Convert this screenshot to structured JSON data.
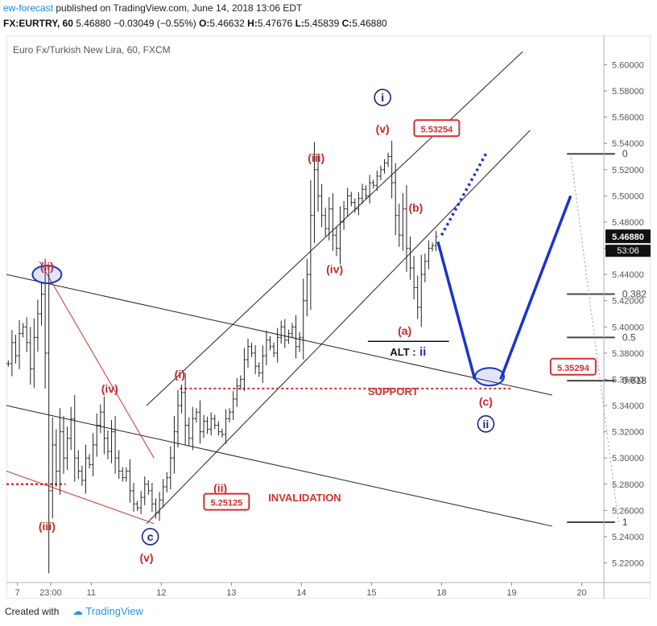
{
  "header": {
    "author": "ew-forecast",
    "publish_text": "published on TradingView.com, June 14, 2018 13:06 EDT",
    "symbol": "FX:EURTRY, 60",
    "last": "5.46880",
    "change": "−0.03049 (−0.55%)",
    "o_label": "O:",
    "o_val": "5.46632",
    "h_label": "H:",
    "h_val": "5.47676",
    "l_label": "L:",
    "l_val": "5.45839",
    "c_label": "C:",
    "c_val": "5.46880"
  },
  "footer": {
    "created_with": "Created with",
    "brand": "TradingView"
  },
  "colors": {
    "red": "#c62828",
    "blue": "#1a33cc",
    "text": "#444444",
    "grid": "#e0e0e0"
  },
  "chart_data": {
    "type": "candlestick",
    "title": "Euro Fx/Turkish New Lira, 60, FXCM",
    "ylim": [
      5.205,
      5.615
    ],
    "y_ticks": [
      "5.22000",
      "5.24000",
      "5.26000",
      "5.28000",
      "5.30000",
      "5.32000",
      "5.34000",
      "5.36000",
      "5.38000",
      "5.40000",
      "5.42000",
      "5.44000",
      "5.46000",
      "5.48000",
      "5.50000",
      "5.52000",
      "5.54000",
      "5.56000",
      "5.58000",
      "5.60000"
    ],
    "x_ticks": [
      {
        "label": "7",
        "t": 3
      },
      {
        "label": "23:00",
        "t": 12
      },
      {
        "label": "11",
        "t": 23
      },
      {
        "label": "12",
        "t": 42
      },
      {
        "label": "13",
        "t": 61
      },
      {
        "label": "14",
        "t": 80
      },
      {
        "label": "15",
        "t": 99
      },
      {
        "label": "18",
        "t": 118
      },
      {
        "label": "19",
        "t": 137
      },
      {
        "label": "20",
        "t": 156
      }
    ],
    "xlim": [
      0,
      162
    ],
    "current_price": "5.46880",
    "countdown": "53:06",
    "closes": [
      5.372,
      5.388,
      5.378,
      5.395,
      5.4,
      5.388,
      5.368,
      5.392,
      5.41,
      5.425,
      5.38,
      5.275,
      5.31,
      5.29,
      5.32,
      5.3,
      5.315,
      5.33,
      5.3,
      5.29,
      5.283,
      5.3,
      5.295,
      5.31,
      5.325,
      5.335,
      5.315,
      5.305,
      5.32,
      5.3,
      5.29,
      5.285,
      5.29,
      5.275,
      5.265,
      5.262,
      5.27,
      5.28,
      5.275,
      5.265,
      5.258,
      5.268,
      5.278,
      5.285,
      5.3,
      5.32,
      5.34,
      5.35,
      5.325,
      5.315,
      5.33,
      5.335,
      5.32,
      5.328,
      5.322,
      5.33,
      5.325,
      5.32,
      5.318,
      5.33,
      5.335,
      5.345,
      5.355,
      5.36,
      5.375,
      5.385,
      5.38,
      5.37,
      5.365,
      5.378,
      5.39,
      5.385,
      5.38,
      5.392,
      5.4,
      5.39,
      5.395,
      5.4,
      5.385,
      5.392,
      5.42,
      5.44,
      5.485,
      5.52,
      5.5,
      5.485,
      5.475,
      5.49,
      5.47,
      5.46,
      5.48,
      5.49,
      5.5,
      5.495,
      5.49,
      5.498,
      5.505,
      5.5,
      5.51,
      5.508,
      5.515,
      5.52,
      5.525,
      5.53,
      5.51,
      5.485,
      5.47,
      5.49,
      5.46,
      5.445,
      5.43,
      5.415,
      5.44,
      5.45,
      5.46,
      5.462,
      5.469
    ],
    "wave_labels": [
      {
        "text": "(ii)",
        "color": "red",
        "t": 11,
        "y": 5.443
      },
      {
        "text": "(iii)",
        "color": "red",
        "t": 11,
        "y": 5.245
      },
      {
        "text": "(iv)",
        "color": "red",
        "t": 28,
        "y": 5.35
      },
      {
        "text": "(v)",
        "color": "red",
        "t": 38,
        "y": 5.221
      },
      {
        "text": "(i)",
        "color": "red",
        "t": 47,
        "y": 5.361
      },
      {
        "text": "(ii)",
        "color": "red",
        "t": 58,
        "y": 5.274
      },
      {
        "text": "(iii)",
        "color": "red",
        "t": 84,
        "y": 5.526
      },
      {
        "text": "(iv)",
        "color": "red",
        "t": 89,
        "y": 5.441
      },
      {
        "text": "(v)",
        "color": "red",
        "t": 102,
        "y": 5.548
      },
      {
        "text": "(b)",
        "color": "red",
        "t": 111,
        "y": 5.488
      },
      {
        "text": "(a)",
        "color": "red",
        "t": 108,
        "y": 5.394
      },
      {
        "text": "(c)",
        "color": "red",
        "t": 130,
        "y": 5.34
      }
    ],
    "circle_labels": [
      {
        "text": "c",
        "t": 39,
        "y": 5.24
      },
      {
        "text": "i",
        "t": 102,
        "y": 5.575
      },
      {
        "text": "ii",
        "t": 130,
        "y": 5.326
      }
    ],
    "price_boxes": [
      {
        "text": "5.53254",
        "t": 111,
        "y": 5.551
      },
      {
        "text": "5.25125",
        "t": 54,
        "y": 5.266
      },
      {
        "text": "5.35294",
        "t": 148,
        "y": 5.369
      }
    ],
    "annotations": [
      {
        "text": "SUPPORT",
        "t": 98,
        "y": 5.348
      },
      {
        "text": "INVALIDATION",
        "t": 71,
        "y": 5.267
      },
      {
        "text": "ALT : ",
        "t": 104,
        "y": 5.378
      },
      {
        "text": "ii",
        "t": 112,
        "y": 5.378
      }
    ],
    "fib_levels": [
      {
        "label": "0",
        "y": 5.532
      },
      {
        "label": "0.382",
        "y": 5.425
      },
      {
        "label": "0.5",
        "y": 5.392
      },
      {
        "label": "0.618",
        "y": 5.359
      },
      {
        "label": "1",
        "y": 5.251
      }
    ],
    "support_level": 5.353,
    "invalidation_level": 5.28
  }
}
